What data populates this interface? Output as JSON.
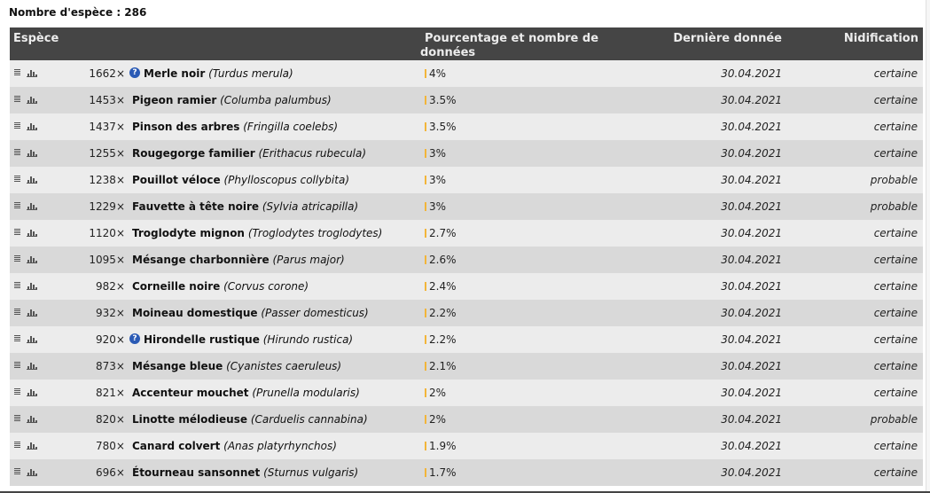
{
  "header": {
    "species_count_label": "Nombre d'espèce : 286"
  },
  "table": {
    "columns": {
      "species": "Espèce",
      "percentage_line1": "Pourcentage et nombre de",
      "percentage_line2": "données",
      "last_record": "Dernière donnée",
      "nesting": "Nidification"
    },
    "rows": [
      {
        "count": "1662×",
        "info": true,
        "name": "Merle noir",
        "sci": "(Turdus merula)",
        "pct": "4%",
        "bar_pct": 4,
        "date": "30.04.2021",
        "nesting": "certaine"
      },
      {
        "count": "1453×",
        "info": false,
        "name": "Pigeon ramier",
        "sci": "(Columba palumbus)",
        "pct": "3.5%",
        "bar_pct": 3.5,
        "date": "30.04.2021",
        "nesting": "certaine"
      },
      {
        "count": "1437×",
        "info": false,
        "name": "Pinson des arbres",
        "sci": "(Fringilla coelebs)",
        "pct": "3.5%",
        "bar_pct": 3.5,
        "date": "30.04.2021",
        "nesting": "certaine"
      },
      {
        "count": "1255×",
        "info": false,
        "name": "Rougegorge familier",
        "sci": "(Erithacus rubecula)",
        "pct": "3%",
        "bar_pct": 3,
        "date": "30.04.2021",
        "nesting": "certaine"
      },
      {
        "count": "1238×",
        "info": false,
        "name": "Pouillot véloce",
        "sci": "(Phylloscopus collybita)",
        "pct": "3%",
        "bar_pct": 3,
        "date": "30.04.2021",
        "nesting": "probable"
      },
      {
        "count": "1229×",
        "info": false,
        "name": "Fauvette à tête noire",
        "sci": "(Sylvia atricapilla)",
        "pct": "3%",
        "bar_pct": 3,
        "date": "30.04.2021",
        "nesting": "probable"
      },
      {
        "count": "1120×",
        "info": false,
        "name": "Troglodyte mignon",
        "sci": "(Troglodytes troglodytes)",
        "pct": "2.7%",
        "bar_pct": 2.7,
        "date": "30.04.2021",
        "nesting": "certaine"
      },
      {
        "count": "1095×",
        "info": false,
        "name": "Mésange charbonnière",
        "sci": "(Parus major)",
        "pct": "2.6%",
        "bar_pct": 2.6,
        "date": "30.04.2021",
        "nesting": "certaine"
      },
      {
        "count": "982×",
        "info": false,
        "name": "Corneille noire",
        "sci": "(Corvus corone)",
        "pct": "2.4%",
        "bar_pct": 2.4,
        "date": "30.04.2021",
        "nesting": "certaine"
      },
      {
        "count": "932×",
        "info": false,
        "name": "Moineau domestique",
        "sci": "(Passer domesticus)",
        "pct": "2.2%",
        "bar_pct": 2.2,
        "date": "30.04.2021",
        "nesting": "certaine"
      },
      {
        "count": "920×",
        "info": true,
        "name": "Hirondelle rustique",
        "sci": "(Hirundo rustica)",
        "pct": "2.2%",
        "bar_pct": 2.2,
        "date": "30.04.2021",
        "nesting": "certaine"
      },
      {
        "count": "873×",
        "info": false,
        "name": "Mésange bleue",
        "sci": "(Cyanistes caeruleus)",
        "pct": "2.1%",
        "bar_pct": 2.1,
        "date": "30.04.2021",
        "nesting": "certaine"
      },
      {
        "count": "821×",
        "info": false,
        "name": "Accenteur mouchet",
        "sci": "(Prunella modularis)",
        "pct": "2%",
        "bar_pct": 2,
        "date": "30.04.2021",
        "nesting": "certaine"
      },
      {
        "count": "820×",
        "info": false,
        "name": "Linotte mélodieuse",
        "sci": "(Carduelis cannabina)",
        "pct": "2%",
        "bar_pct": 2,
        "date": "30.04.2021",
        "nesting": "probable"
      },
      {
        "count": "780×",
        "info": false,
        "name": "Canard colvert",
        "sci": "(Anas platyrhynchos)",
        "pct": "1.9%",
        "bar_pct": 1.9,
        "date": "30.04.2021",
        "nesting": "certaine"
      },
      {
        "count": "696×",
        "info": false,
        "name": "Étourneau sansonnet",
        "sci": "(Sturnus vulgaris)",
        "pct": "1.7%",
        "bar_pct": 1.7,
        "date": "30.04.2021",
        "nesting": "certaine"
      }
    ]
  },
  "icons": {
    "info": "question-icon",
    "list": "list-icon",
    "chart": "bar-chart-icon"
  },
  "colors": {
    "header_bg": "#454545",
    "row_odd": "#ececec",
    "row_even": "#d9d9d9",
    "bar": "#f2b53a",
    "info_icon": "#2a5ab5"
  }
}
